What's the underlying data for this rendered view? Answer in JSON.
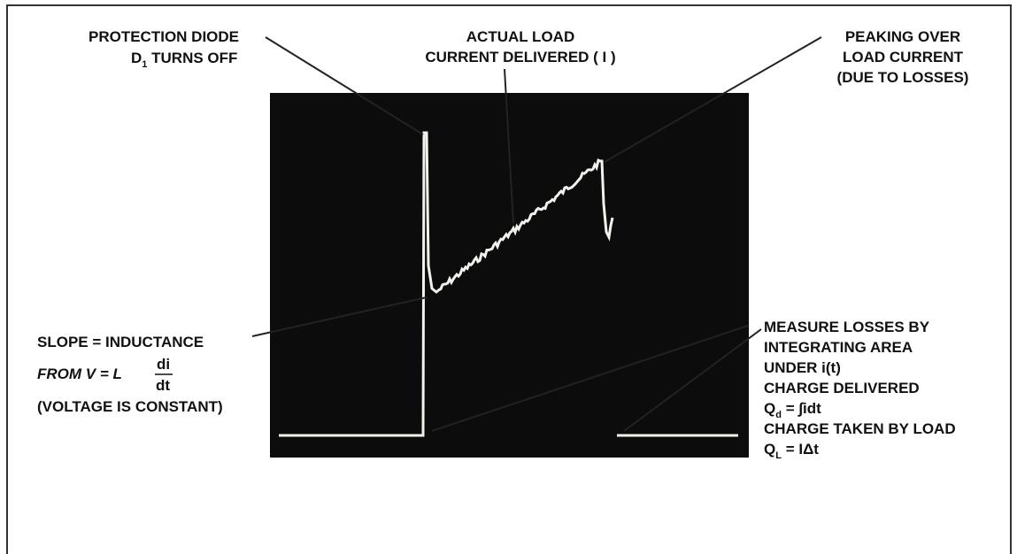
{
  "annotations": {
    "diode": {
      "line1": "PROTECTION DIODE",
      "line2_main": "D",
      "line2_sub": "1",
      "line2_rest": " TURNS OFF"
    },
    "actual": {
      "line1": "ACTUAL LOAD",
      "line2": "CURRENT DELIVERED ( I )"
    },
    "peaking": {
      "line1": "PEAKING OVER",
      "line2": "LOAD CURRENT",
      "line3": "(DUE TO LOSSES)"
    },
    "slope": {
      "line1": "SLOPE = INDUCTANCE",
      "from": "FROM V = L",
      "numerator": "di",
      "denominator": "dt",
      "line3": "(VOLTAGE IS CONSTANT)"
    },
    "losses": {
      "line1": "MEASURE LOSSES BY",
      "line2": "INTEGRATING AREA",
      "line3": "UNDER i(t)",
      "line4": "CHARGE DELIVERED",
      "qd_main": "Q",
      "qd_sub": "d",
      "qd_rest": " = ∫idt",
      "line6": "CHARGE TAKEN BY LOAD",
      "ql_main": "Q",
      "ql_sub": "L",
      "ql_rest": " = IΔt"
    }
  }
}
